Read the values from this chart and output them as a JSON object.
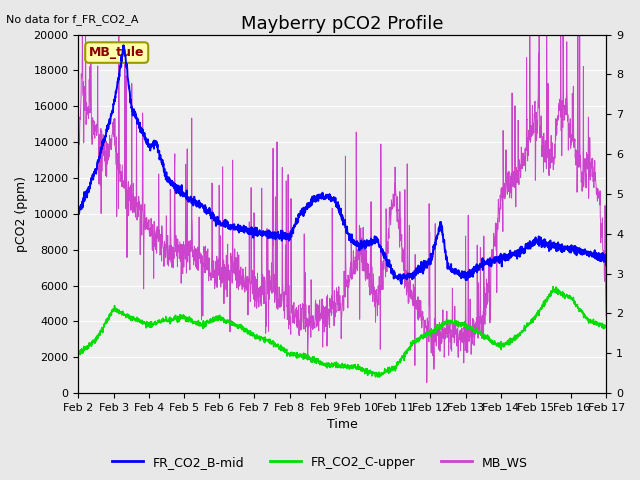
{
  "title": "Mayberry pCO2 Profile",
  "subtitle": "No data for f_FR_CO2_A",
  "xlabel": "Time",
  "ylabel_left": "pCO2 (ppm)",
  "ylim_left": [
    0,
    20000
  ],
  "ylim_right": [
    0.0,
    9.0
  ],
  "yticks_left": [
    0,
    2000,
    4000,
    6000,
    8000,
    10000,
    12000,
    14000,
    16000,
    18000,
    20000
  ],
  "yticks_right": [
    0.0,
    1.0,
    2.0,
    3.0,
    4.0,
    5.0,
    6.0,
    7.0,
    8.0,
    9.0
  ],
  "xtick_labels": [
    "Feb 2",
    "Feb 3",
    "Feb 4",
    "Feb 5",
    "Feb 6",
    "Feb 7",
    "Feb 8",
    "Feb 9",
    "Feb 10",
    "Feb 11",
    "Feb 12",
    "Feb 13",
    "Feb 14",
    "Feb 15",
    "Feb 16",
    "Feb 17"
  ],
  "color_blue": "#0000ff",
  "color_green": "#00dd00",
  "color_purple": "#cc44cc",
  "bg_color": "#e8e8e8",
  "plot_bg": "#eeeeee",
  "grid_color": "#ffffff",
  "legend_labels": [
    "FR_CO2_B-mid",
    "FR_CO2_C-upper",
    "MB_WS"
  ],
  "annotation_text": "MB_tule",
  "title_fontsize": 13,
  "label_fontsize": 9,
  "tick_fontsize": 8
}
